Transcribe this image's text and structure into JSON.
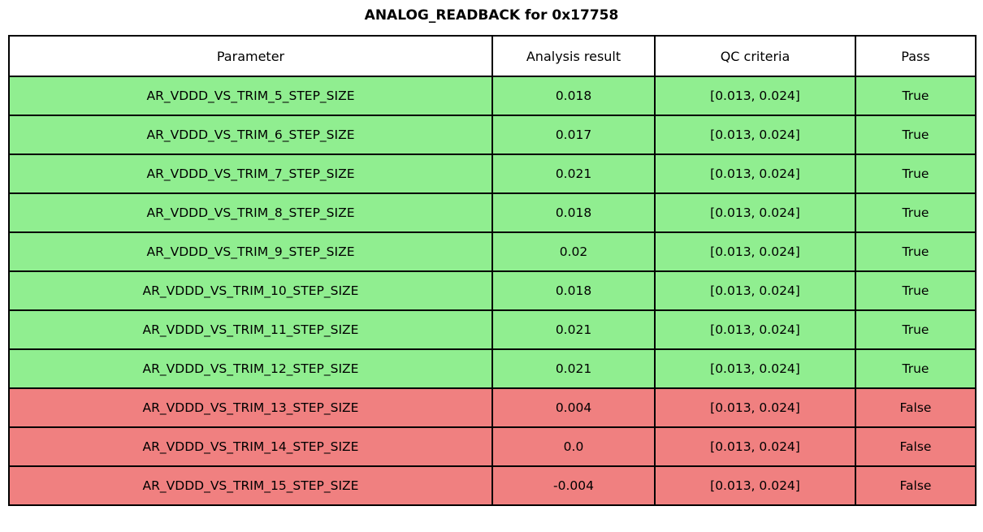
{
  "title": "ANALOG_READBACK for 0x17758",
  "colors": {
    "pass_bg": "#90EE90",
    "fail_bg": "#F08080",
    "border": "#000000",
    "header_bg": "#FFFFFF",
    "text": "#000000",
    "page_bg": "#FFFFFF"
  },
  "chart_data": {
    "type": "table",
    "title": "ANALOG_READBACK for 0x17758",
    "columns": [
      "Parameter",
      "Analysis result",
      "QC criteria",
      "Pass"
    ],
    "qc_lower": 0.013,
    "qc_upper": 0.024,
    "analysis_values": [
      0.018,
      0.017,
      0.021,
      0.018,
      0.02,
      0.018,
      0.021,
      0.021,
      0.004,
      0.0,
      -0.004
    ],
    "rows": [
      {
        "parameter": "AR_VDDD_VS_TRIM_5_STEP_SIZE",
        "analysis_result": "0.018",
        "qc_criteria": "[0.013, 0.024]",
        "pass": "True"
      },
      {
        "parameter": "AR_VDDD_VS_TRIM_6_STEP_SIZE",
        "analysis_result": "0.017",
        "qc_criteria": "[0.013, 0.024]",
        "pass": "True"
      },
      {
        "parameter": "AR_VDDD_VS_TRIM_7_STEP_SIZE",
        "analysis_result": "0.021",
        "qc_criteria": "[0.013, 0.024]",
        "pass": "True"
      },
      {
        "parameter": "AR_VDDD_VS_TRIM_8_STEP_SIZE",
        "analysis_result": "0.018",
        "qc_criteria": "[0.013, 0.024]",
        "pass": "True"
      },
      {
        "parameter": "AR_VDDD_VS_TRIM_9_STEP_SIZE",
        "analysis_result": "0.02",
        "qc_criteria": "[0.013, 0.024]",
        "pass": "True"
      },
      {
        "parameter": "AR_VDDD_VS_TRIM_10_STEP_SIZE",
        "analysis_result": "0.018",
        "qc_criteria": "[0.013, 0.024]",
        "pass": "True"
      },
      {
        "parameter": "AR_VDDD_VS_TRIM_11_STEP_SIZE",
        "analysis_result": "0.021",
        "qc_criteria": "[0.013, 0.024]",
        "pass": "True"
      },
      {
        "parameter": "AR_VDDD_VS_TRIM_12_STEP_SIZE",
        "analysis_result": "0.021",
        "qc_criteria": "[0.013, 0.024]",
        "pass": "True"
      },
      {
        "parameter": "AR_VDDD_VS_TRIM_13_STEP_SIZE",
        "analysis_result": "0.004",
        "qc_criteria": "[0.013, 0.024]",
        "pass": "False"
      },
      {
        "parameter": "AR_VDDD_VS_TRIM_14_STEP_SIZE",
        "analysis_result": "0.0",
        "qc_criteria": "[0.013, 0.024]",
        "pass": "False"
      },
      {
        "parameter": "AR_VDDD_VS_TRIM_15_STEP_SIZE",
        "analysis_result": "-0.004",
        "qc_criteria": "[0.013, 0.024]",
        "pass": "False"
      }
    ]
  }
}
